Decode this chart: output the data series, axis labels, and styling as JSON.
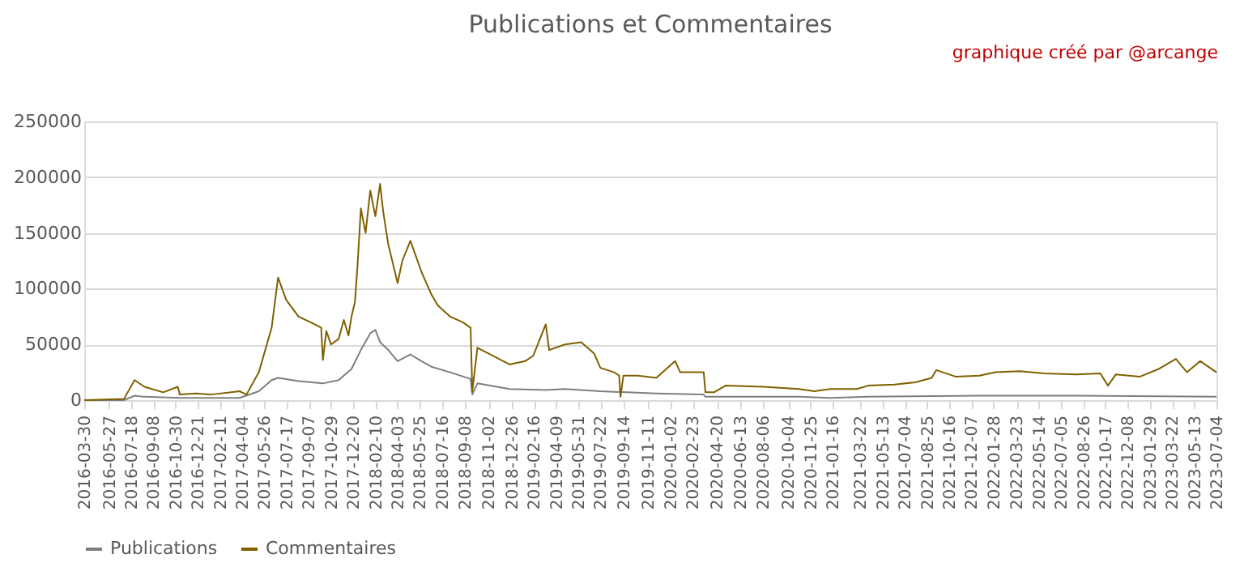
{
  "chart_data": {
    "type": "line",
    "title": "Publications et Commentaires",
    "annotations": [
      "graphique créé par @arcange"
    ],
    "xlim": [
      "2016-03-30",
      "2023-07-04"
    ],
    "xticks": [
      "2016-03-30",
      "2016-05-27",
      "2016-07-18",
      "2016-09-08",
      "2016-10-30",
      "2016-12-21",
      "2017-02-11",
      "2017-04-04",
      "2017-05-26",
      "2017-07-17",
      "2017-09-07",
      "2017-10-29",
      "2017-12-20",
      "2018-02-10",
      "2018-04-03",
      "2018-05-25",
      "2018-07-16",
      "2018-09-08",
      "2018-11-02",
      "2018-12-26",
      "2019-02-16",
      "2019-04-09",
      "2019-05-31",
      "2019-07-22",
      "2019-09-14",
      "2019-11-11",
      "2020-01-02",
      "2020-02-23",
      "2020-04-20",
      "2020-06-13",
      "2020-08-06",
      "2020-10-04",
      "2020-11-25",
      "2021-01-16",
      "2021-03-22",
      "2021-05-13",
      "2021-07-04",
      "2021-08-25",
      "2021-10-16",
      "2021-12-07",
      "2022-01-28",
      "2022-03-23",
      "2022-05-14",
      "2022-07-05",
      "2022-08-26",
      "2022-10-17",
      "2022-12-08",
      "2023-01-29",
      "2023-03-22",
      "2023-05-13",
      "2023-07-04"
    ],
    "ylim": [
      0,
      250000
    ],
    "yticks": [
      0,
      50000,
      100000,
      150000,
      200000,
      250000
    ],
    "grid": "y",
    "legend": "bottom",
    "marker": "none",
    "line_style": "solid",
    "series": [
      {
        "name": "Publications",
        "color": "#7f7f7f",
        "x": [
          "2016-03-30",
          "2016-07-01",
          "2016-07-26",
          "2016-08-18",
          "2016-11-09",
          "2017-03-29",
          "2017-05-13",
          "2017-06-12",
          "2017-06-27",
          "2017-08-14",
          "2017-10-10",
          "2017-11-16",
          "2017-12-16",
          "2018-01-07",
          "2018-01-29",
          "2018-02-10",
          "2018-02-21",
          "2018-03-12",
          "2018-04-03",
          "2018-05-03",
          "2018-05-29",
          "2018-06-21",
          "2018-08-04",
          "2018-09-21",
          "2018-09-25",
          "2018-10-07",
          "2018-12-21",
          "2019-03-16",
          "2019-04-30",
          "2019-07-22",
          "2019-11-30",
          "2020-03-20",
          "2020-03-24",
          "2020-10-29",
          "2021-01-11",
          "2021-04-09",
          "2021-12-26",
          "2022-08-10",
          "2023-07-04"
        ],
        "values": [
          0,
          0,
          4000,
          3000,
          2000,
          2000,
          8000,
          18000,
          20000,
          17000,
          15000,
          18000,
          28000,
          45000,
          60000,
          63000,
          52000,
          45000,
          35000,
          41000,
          35000,
          30000,
          25000,
          19000,
          5000,
          15000,
          10000,
          9000,
          10000,
          8000,
          6000,
          5000,
          3000,
          3000,
          2000,
          3000,
          4000,
          4000,
          3000
        ]
      },
      {
        "name": "Commentaires",
        "color": "#7f6000",
        "x": [
          "2016-03-30",
          "2016-07-01",
          "2016-07-26",
          "2016-08-18",
          "2016-10-01",
          "2016-11-04",
          "2016-11-09",
          "2016-12-16",
          "2017-01-21",
          "2017-03-29",
          "2017-04-14",
          "2017-05-13",
          "2017-06-12",
          "2017-06-27",
          "2017-07-16",
          "2017-08-14",
          "2017-09-21",
          "2017-10-06",
          "2017-10-10",
          "2017-10-18",
          "2017-10-29",
          "2017-11-16",
          "2017-11-28",
          "2017-12-09",
          "2017-12-16",
          "2017-12-24",
          "2017-12-30",
          "2018-01-07",
          "2018-01-18",
          "2018-01-29",
          "2018-02-10",
          "2018-02-21",
          "2018-02-28",
          "2018-03-12",
          "2018-04-03",
          "2018-04-14",
          "2018-05-03",
          "2018-05-29",
          "2018-06-21",
          "2018-07-06",
          "2018-08-04",
          "2018-09-02",
          "2018-09-21",
          "2018-09-25",
          "2018-10-07",
          "2018-11-11",
          "2018-12-21",
          "2019-01-27",
          "2019-02-15",
          "2019-03-16",
          "2019-03-24",
          "2019-04-30",
          "2019-06-07",
          "2019-07-07",
          "2019-07-22",
          "2019-08-23",
          "2019-09-04",
          "2019-09-07",
          "2019-09-14",
          "2019-10-18",
          "2019-11-30",
          "2020-01-13",
          "2020-01-25",
          "2020-03-20",
          "2020-03-24",
          "2020-04-13",
          "2020-05-10",
          "2020-08-07",
          "2020-10-29",
          "2020-12-04",
          "2021-01-11",
          "2021-03-14",
          "2021-04-09",
          "2021-06-10",
          "2021-07-29",
          "2021-09-05",
          "2021-09-16",
          "2021-11-01",
          "2021-12-26",
          "2022-02-01",
          "2022-03-31",
          "2022-05-26",
          "2022-08-10",
          "2022-10-05",
          "2022-10-23",
          "2022-11-10",
          "2023-01-05",
          "2023-02-19",
          "2023-03-31",
          "2023-04-26",
          "2023-05-27",
          "2023-07-04"
        ],
        "values": [
          0,
          1000,
          18000,
          12000,
          7000,
          12000,
          5000,
          6000,
          5000,
          8000,
          5000,
          25000,
          65000,
          110000,
          90000,
          75000,
          68000,
          65000,
          36000,
          62000,
          50000,
          55000,
          72000,
          58000,
          75000,
          88000,
          120000,
          172000,
          150000,
          188000,
          165000,
          194000,
          170000,
          140000,
          105000,
          125000,
          143000,
          115000,
          95000,
          85000,
          75000,
          70000,
          65000,
          8000,
          47000,
          40000,
          32000,
          35000,
          40000,
          68000,
          45000,
          50000,
          52000,
          42000,
          29000,
          25000,
          22000,
          3000,
          22000,
          22000,
          20000,
          35000,
          25000,
          25000,
          7000,
          7000,
          13000,
          12000,
          10000,
          8000,
          10000,
          10000,
          13000,
          14000,
          16000,
          20000,
          27000,
          21000,
          22000,
          25000,
          26000,
          24000,
          23000,
          24000,
          13000,
          23000,
          21000,
          28000,
          37000,
          25000,
          35000,
          25000
        ]
      }
    ]
  }
}
